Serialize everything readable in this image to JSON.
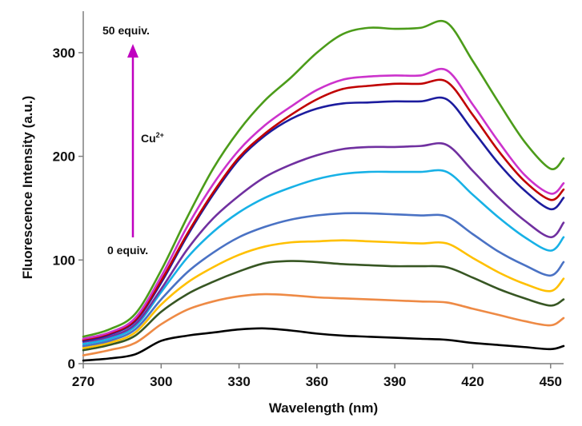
{
  "chart_data": {
    "type": "line",
    "title": "",
    "xlabel": "Wavelength (nm)",
    "ylabel": "Fluorescence Intensity (a.u.)",
    "xlim": [
      270,
      455
    ],
    "ylim": [
      0,
      340
    ],
    "xticks": [
      270,
      300,
      330,
      360,
      390,
      420,
      450
    ],
    "yticks": [
      0,
      100,
      200,
      300
    ],
    "grid": false,
    "legend": "none",
    "x": [
      270,
      280,
      290,
      300,
      310,
      320,
      330,
      340,
      350,
      360,
      370,
      380,
      390,
      400,
      410,
      420,
      430,
      440,
      450,
      455
    ],
    "series": [
      {
        "color": "#000000",
        "values": [
          3,
          5,
          9,
          22,
          27,
          30,
          33,
          34,
          32,
          29,
          27,
          26,
          25,
          24,
          23,
          20,
          18,
          16,
          14,
          17
        ]
      },
      {
        "color": "#ee8a45",
        "values": [
          8,
          13,
          20,
          38,
          52,
          60,
          65,
          67,
          66,
          64,
          63,
          62,
          61,
          60,
          59,
          53,
          47,
          41,
          37,
          44
        ]
      },
      {
        "color": "#375623",
        "values": [
          13,
          18,
          27,
          50,
          67,
          79,
          89,
          97,
          99,
          98,
          96,
          95,
          94,
          94,
          93,
          83,
          72,
          63,
          56,
          62
        ]
      },
      {
        "color": "#ffc000",
        "values": [
          15,
          20,
          30,
          57,
          78,
          93,
          105,
          113,
          117,
          118,
          119,
          118,
          117,
          116,
          116,
          102,
          88,
          77,
          70,
          82
        ]
      },
      {
        "color": "#4a72c4",
        "values": [
          17,
          22,
          33,
          62,
          88,
          107,
          122,
          132,
          139,
          143,
          145,
          145,
          144,
          143,
          142,
          125,
          108,
          95,
          85,
          98
        ]
      },
      {
        "color": "#17b1e6",
        "values": [
          19,
          24,
          36,
          69,
          102,
          127,
          146,
          160,
          170,
          178,
          183,
          185,
          185,
          185,
          185,
          163,
          141,
          122,
          109,
          122
        ]
      },
      {
        "color": "#7030a0",
        "values": [
          21,
          26,
          38,
          72,
          110,
          140,
          162,
          180,
          192,
          201,
          207,
          209,
          209,
          210,
          211,
          186,
          160,
          138,
          122,
          136
        ]
      },
      {
        "color": "#1c1c9e",
        "values": [
          22,
          28,
          41,
          78,
          123,
          163,
          197,
          220,
          236,
          246,
          251,
          252,
          253,
          253,
          255,
          225,
          193,
          167,
          149,
          160
        ]
      },
      {
        "color": "#c00000",
        "values": [
          23,
          29,
          42,
          80,
          125,
          165,
          199,
          222,
          240,
          255,
          265,
          268,
          270,
          270,
          272,
          240,
          205,
          176,
          158,
          168
        ]
      },
      {
        "color": "#cc33cc",
        "values": [
          24,
          30,
          44,
          84,
          132,
          173,
          206,
          230,
          248,
          264,
          274,
          277,
          278,
          278,
          283,
          250,
          214,
          182,
          164,
          174
        ]
      },
      {
        "color": "#4c9c1a",
        "values": [
          26,
          33,
          48,
          90,
          141,
          188,
          225,
          254,
          276,
          300,
          318,
          324,
          323,
          324,
          329,
          292,
          252,
          214,
          188,
          198
        ]
      }
    ],
    "annotations": {
      "top_label": "50 equiv.",
      "bottom_label": "0 equiv.",
      "analyte_base": "Cu",
      "analyte_sup": "2+",
      "arrow_color": "#c000c0"
    }
  }
}
